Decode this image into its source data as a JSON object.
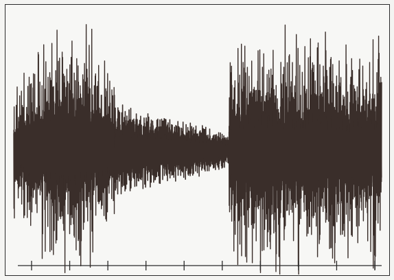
{
  "chart_data": {
    "type": "line",
    "title": "",
    "xlabel": "",
    "ylabel": "",
    "x_ticks": 10,
    "segments": [
      {
        "name": "",
        "x_start": 0.0,
        "x_end": 0.275,
        "amplitude_envelope": [
          0.55,
          0.7,
          0.95,
          1.0,
          0.9,
          0.6
        ],
        "spike_rate": 38
      },
      {
        "name": "",
        "x_start": 0.275,
        "x_end": 0.585,
        "amplitude_envelope": [
          0.35,
          0.3,
          0.25,
          0.22,
          0.18,
          0.12
        ],
        "spike_rate": 70
      },
      {
        "name": "",
        "x_start": 0.585,
        "x_end": 1.0,
        "amplitude_envelope": [
          0.9,
          1.0,
          0.95,
          0.9,
          0.85,
          0.9
        ],
        "spike_rate": 40
      }
    ],
    "colors": {
      "trace": "#3a2e2a",
      "axis": "#2a2a2a",
      "background": "#f7f7f5"
    },
    "grid": false,
    "legend": "none"
  }
}
